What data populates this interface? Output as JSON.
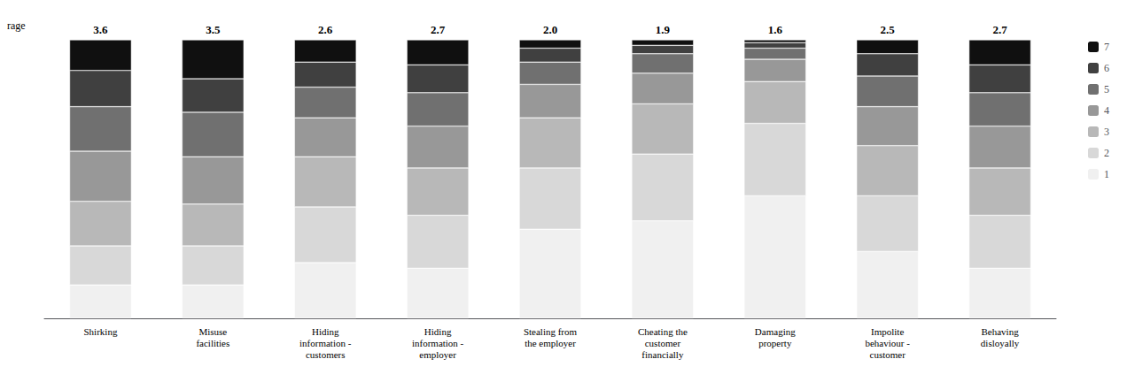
{
  "chart_data": {
    "type": "bar",
    "stacked": true,
    "categories": [
      "Shirking",
      "Misuse\nfacilities",
      "Hiding\ninformation -\ncustomers",
      "Hiding\ninformation -\nemployer",
      "Stealing from\nthe employer",
      "Cheating the\ncustomer\nfinancially",
      "Damaging\nproperty",
      "Impolite\nbehaviour -\ncustomer",
      "Behaving\ndisloyally"
    ],
    "series": [
      {
        "name": "1",
        "color": "#f0f0f0",
        "values": [
          12,
          12,
          20,
          18,
          32,
          35,
          44,
          24,
          18
        ]
      },
      {
        "name": "2",
        "color": "#d8d8d8",
        "values": [
          14,
          14,
          20,
          19,
          22,
          24,
          26,
          20,
          19
        ]
      },
      {
        "name": "3",
        "color": "#b8b8b8",
        "values": [
          16,
          15,
          18,
          17,
          18,
          18,
          15,
          18,
          17
        ]
      },
      {
        "name": "4",
        "color": "#989898",
        "values": [
          18,
          17,
          14,
          15,
          12,
          11,
          8,
          14,
          15
        ]
      },
      {
        "name": "5",
        "color": "#707070",
        "values": [
          16,
          16,
          11,
          12,
          8,
          7,
          4,
          11,
          12
        ]
      },
      {
        "name": "6",
        "color": "#404040",
        "values": [
          13,
          12,
          9,
          10,
          5,
          3,
          2,
          8,
          10
        ]
      },
      {
        "name": "7",
        "color": "#101010",
        "values": [
          11,
          14,
          8,
          9,
          3,
          2,
          1,
          5,
          9
        ]
      }
    ],
    "averages": [
      "3.6",
      "3.5",
      "2.6",
      "2.7",
      "2.0",
      "1.9",
      "1.6",
      "2.5",
      "2.7"
    ],
    "annotations": [
      "rage"
    ],
    "ylim": [
      0,
      100
    ],
    "yticks": [],
    "tick_labels": "x",
    "grid": false,
    "legend": "right"
  }
}
